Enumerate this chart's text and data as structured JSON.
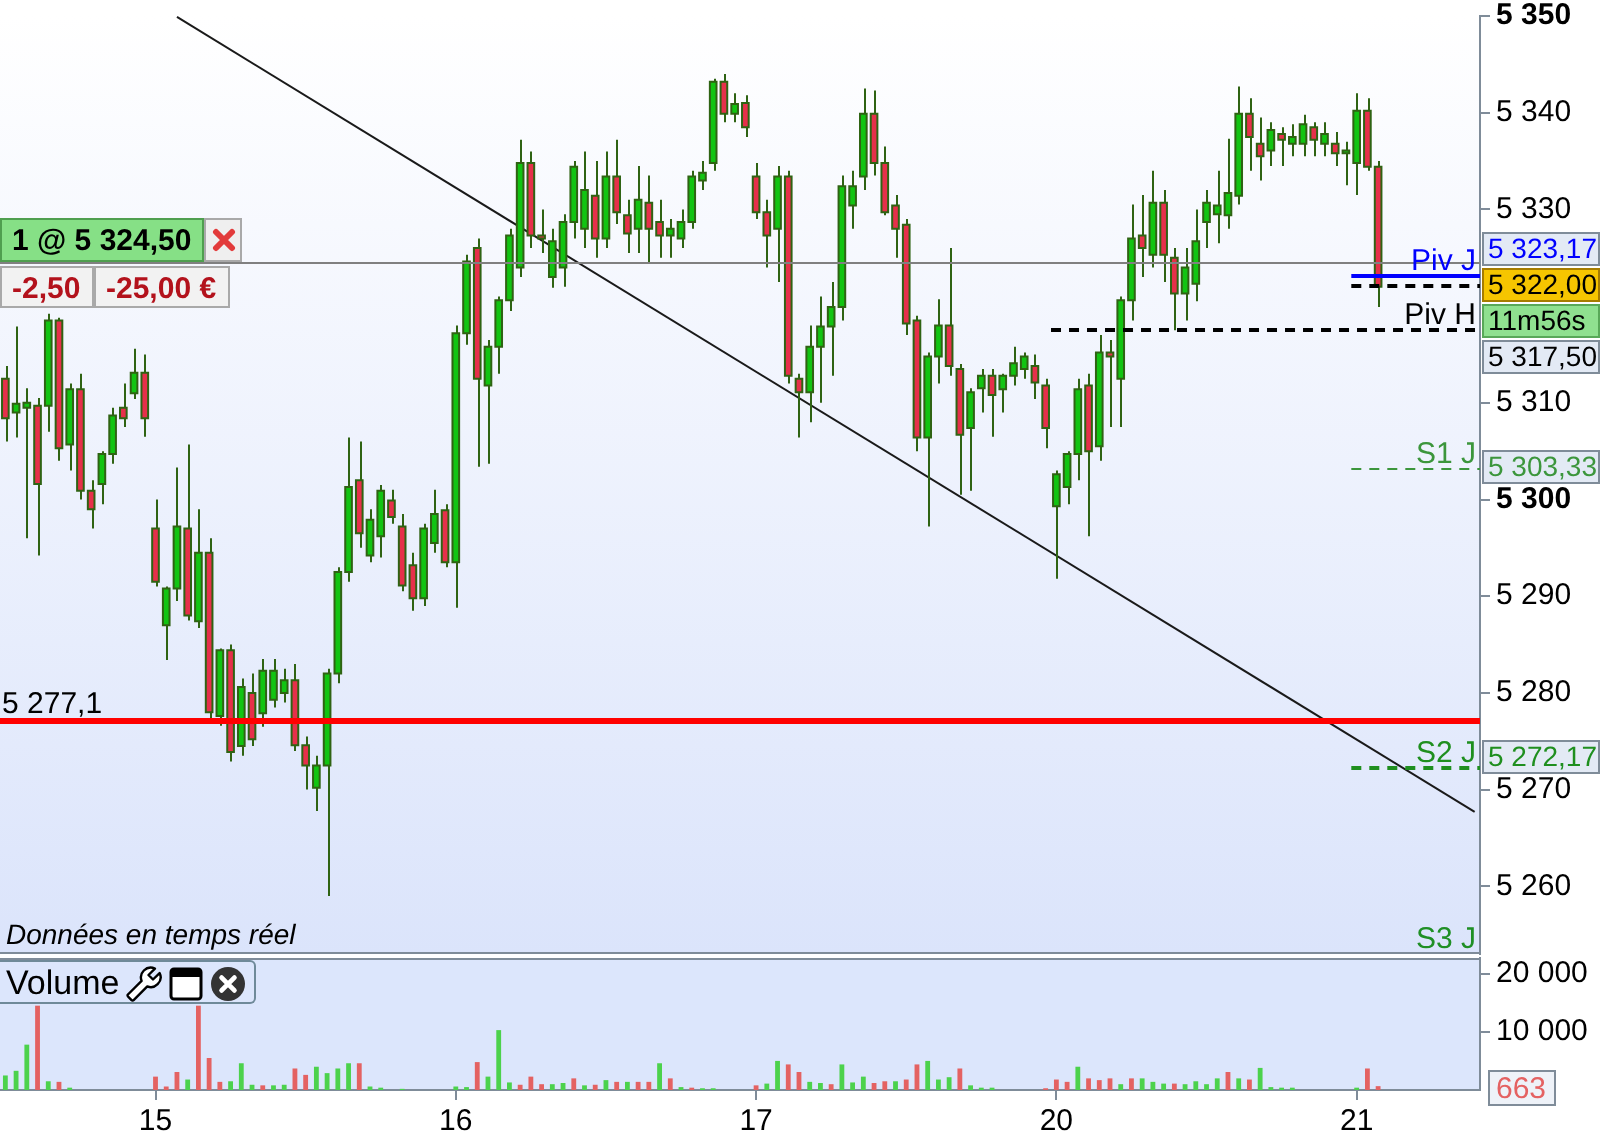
{
  "chart_data": [
    {
      "type": "candlestick",
      "categories": [
        null,
        null,
        null,
        null,
        null,
        null,
        null,
        null,
        null,
        null,
        null,
        null,
        null,
        null,
        "15",
        null,
        null,
        null,
        null,
        null,
        null,
        null,
        null,
        null,
        null,
        null,
        null,
        null,
        null,
        null,
        null,
        null,
        null,
        null,
        null,
        null,
        null,
        null,
        null,
        null,
        null,
        null,
        "16",
        null,
        null,
        null,
        null,
        null,
        null,
        null,
        null,
        null,
        null,
        null,
        null,
        null,
        null,
        null,
        null,
        null,
        null,
        null,
        null,
        null,
        null,
        null,
        null,
        null,
        null,
        null,
        "17",
        null,
        null,
        null,
        null,
        null,
        null,
        null,
        null,
        null,
        null,
        null,
        null,
        null,
        null,
        null,
        null,
        null,
        null,
        null,
        null,
        null,
        null,
        null,
        null,
        null,
        null,
        null,
        "20",
        null,
        null,
        null,
        null,
        null,
        null,
        null,
        null,
        null,
        null,
        null,
        null,
        null,
        null,
        null,
        null,
        null,
        null,
        null,
        null,
        null,
        null,
        null,
        null,
        null,
        null,
        null,
        "21",
        null,
        null,
        null,
        null,
        null,
        null,
        null,
        null,
        null,
        null,
        null
      ],
      "ohlc": [
        [
          5312.5,
          5313.8,
          5306.0,
          5308.4
        ],
        [
          5309.0,
          5317.9,
          5306.4,
          5309.9
        ],
        [
          5309.5,
          5311.5,
          5296.0,
          5310.0
        ],
        [
          5309.7,
          5310.5,
          5294.2,
          5301.6
        ],
        [
          5309.7,
          5319.2,
          5307.0,
          5318.5
        ],
        [
          5318.5,
          5318.8,
          5304.0,
          5305.3
        ],
        [
          5305.7,
          5312.0,
          5303.0,
          5311.4
        ],
        [
          5311.4,
          5313.0,
          5300.0,
          5300.9
        ],
        [
          5300.9,
          5302.0,
          5297.0,
          5299.0
        ],
        [
          5301.6,
          5305.0,
          5299.5,
          5304.7
        ],
        [
          5304.7,
          5309.5,
          5303.7,
          5308.7
        ],
        [
          5309.5,
          5312.0,
          5307.5,
          5308.4
        ],
        [
          5311.0,
          5315.6,
          5310.4,
          5313.1
        ],
        [
          5313.1,
          5315.0,
          5306.5,
          5308.4
        ],
        [
          5297.0,
          5300.0,
          5291.0,
          5291.5
        ],
        [
          5287.0,
          5291.0,
          5283.4,
          5290.8
        ],
        [
          5290.8,
          5303.3,
          5289.5,
          5297.2
        ],
        [
          5297.0,
          5305.7,
          5287.5,
          5288.0
        ],
        [
          5287.4,
          5299.0,
          5286.7,
          5294.5
        ],
        [
          5294.5,
          5296.0,
          5277.0,
          5278.0
        ],
        [
          5277.6,
          5284.6,
          5276.6,
          5284.4
        ],
        [
          5284.4,
          5285.0,
          5272.9,
          5273.9
        ],
        [
          5274.5,
          5281.5,
          5273.5,
          5280.6
        ],
        [
          5280.0,
          5282.0,
          5274.5,
          5275.2
        ],
        [
          5277.9,
          5283.5,
          5276.5,
          5282.3
        ],
        [
          5279.3,
          5283.5,
          5278.5,
          5282.3
        ],
        [
          5280.0,
          5282.5,
          5279.0,
          5281.3
        ],
        [
          5281.3,
          5283.0,
          5274.0,
          5274.6
        ],
        [
          5274.6,
          5275.5,
          5270.0,
          5272.5
        ],
        [
          5270.2,
          5273.5,
          5267.8,
          5272.5
        ],
        [
          5272.5,
          5282.5,
          5259.0,
          5282.0
        ],
        [
          5282.0,
          5293.0,
          5281.0,
          5292.5
        ],
        [
          5292.5,
          5306.4,
          5291.5,
          5301.3
        ],
        [
          5302.0,
          5306.0,
          5295.0,
          5296.5
        ],
        [
          5294.2,
          5299.0,
          5293.5,
          5297.9
        ],
        [
          5296.2,
          5301.5,
          5294.0,
          5300.9
        ],
        [
          5299.9,
          5301.0,
          5297.5,
          5298.2
        ],
        [
          5297.2,
          5298.5,
          5290.5,
          5291.1
        ],
        [
          5293.2,
          5294.5,
          5288.5,
          5289.8
        ],
        [
          5289.8,
          5297.5,
          5289.0,
          5297.0
        ],
        [
          5295.5,
          5301.0,
          5294.5,
          5298.5
        ],
        [
          5298.9,
          5299.5,
          5293.0,
          5293.5
        ],
        [
          5293.5,
          5318.0,
          5288.8,
          5317.2
        ],
        [
          5317.2,
          5325.3,
          5316.0,
          5324.6
        ],
        [
          5326.0,
          5327.0,
          5303.4,
          5312.5
        ],
        [
          5311.8,
          5316.5,
          5303.7,
          5315.8
        ],
        [
          5315.8,
          5321.0,
          5313.0,
          5320.6
        ],
        [
          5320.6,
          5328.0,
          5319.5,
          5327.3
        ],
        [
          5324.0,
          5337.2,
          5323.0,
          5334.8
        ],
        [
          5334.8,
          5336.0,
          5326.0,
          5327.3
        ],
        [
          5327.3,
          5330.0,
          5325.5,
          5327.0
        ],
        [
          5323.0,
          5328.0,
          5321.9,
          5326.7
        ],
        [
          5324.0,
          5329.5,
          5322.0,
          5328.7
        ],
        [
          5328.7,
          5335.0,
          5327.0,
          5334.4
        ],
        [
          5328.0,
          5336.0,
          5326.0,
          5332.0
        ],
        [
          5331.4,
          5335.0,
          5325.0,
          5327.0
        ],
        [
          5327.0,
          5336.0,
          5326.0,
          5333.4
        ],
        [
          5333.4,
          5337.2,
          5328.5,
          5329.7
        ],
        [
          5329.4,
          5331.0,
          5325.5,
          5327.5
        ],
        [
          5328.0,
          5334.5,
          5325.5,
          5331.0
        ],
        [
          5330.7,
          5333.5,
          5324.5,
          5328.0
        ],
        [
          5328.7,
          5331.0,
          5325.0,
          5327.3
        ],
        [
          5327.3,
          5329.0,
          5325.0,
          5328.0
        ],
        [
          5327.0,
          5330.0,
          5326.0,
          5328.7
        ],
        [
          5328.7,
          5334.0,
          5328.0,
          5333.4
        ],
        [
          5333.0,
          5335.0,
          5332.0,
          5333.8
        ],
        [
          5334.8,
          5343.5,
          5334.0,
          5343.2
        ],
        [
          5343.2,
          5344.0,
          5339.0,
          5339.9
        ],
        [
          5339.9,
          5342.0,
          5339.0,
          5340.9
        ],
        [
          5341.0,
          5341.8,
          5337.5,
          5338.5
        ],
        [
          5333.4,
          5334.8,
          5329.0,
          5329.7
        ],
        [
          5329.7,
          5331.0,
          5324.0,
          5327.3
        ],
        [
          5328.0,
          5334.5,
          5322.5,
          5333.4
        ],
        [
          5333.4,
          5334.0,
          5312.0,
          5312.8
        ],
        [
          5312.5,
          5313.0,
          5306.4,
          5311.1
        ],
        [
          5311.1,
          5318.0,
          5308.0,
          5315.8
        ],
        [
          5315.8,
          5321.0,
          5310.0,
          5317.9
        ],
        [
          5317.9,
          5322.5,
          5312.8,
          5319.9
        ],
        [
          5319.9,
          5333.5,
          5318.5,
          5332.4
        ],
        [
          5330.4,
          5334.0,
          5328.0,
          5332.4
        ],
        [
          5333.4,
          5342.5,
          5332.0,
          5339.9
        ],
        [
          5339.9,
          5342.3,
          5333.5,
          5334.8
        ],
        [
          5334.8,
          5336.5,
          5329.4,
          5329.7
        ],
        [
          5330.4,
          5331.5,
          5325.0,
          5328.0
        ],
        [
          5328.4,
          5329.0,
          5317.0,
          5318.2
        ],
        [
          5318.5,
          5319.0,
          5305.0,
          5306.4
        ],
        [
          5306.4,
          5315.2,
          5297.2,
          5314.8
        ],
        [
          5314.8,
          5320.7,
          5312.0,
          5318.0
        ],
        [
          5318.0,
          5326.0,
          5312.8,
          5313.8
        ],
        [
          5313.5,
          5314.0,
          5300.5,
          5306.7
        ],
        [
          5307.4,
          5311.5,
          5300.9,
          5311.1
        ],
        [
          5311.5,
          5313.5,
          5309.0,
          5312.8
        ],
        [
          5312.8,
          5313.5,
          5306.5,
          5310.8
        ],
        [
          5311.4,
          5313.0,
          5309.0,
          5312.8
        ],
        [
          5312.8,
          5315.8,
          5311.8,
          5314.1
        ],
        [
          5313.5,
          5315.2,
          5312.5,
          5314.8
        ],
        [
          5313.8,
          5315.0,
          5310.4,
          5312.1
        ],
        [
          5311.8,
          5312.5,
          5305.3,
          5307.4
        ],
        [
          5299.3,
          5303.0,
          5291.8,
          5302.6
        ],
        [
          5301.3,
          5305.0,
          5299.5,
          5304.7
        ],
        [
          5304.7,
          5312.5,
          5302.0,
          5311.4
        ],
        [
          5311.8,
          5313.0,
          5296.2,
          5305.0
        ],
        [
          5305.5,
          5317.0,
          5304.0,
          5315.2
        ],
        [
          5315.2,
          5316.5,
          5307.5,
          5314.8
        ],
        [
          5312.5,
          5321.0,
          5307.5,
          5320.6
        ],
        [
          5320.6,
          5330.5,
          5318.5,
          5327.0
        ],
        [
          5327.3,
          5331.5,
          5323.0,
          5326.0
        ],
        [
          5325.3,
          5334.0,
          5324.0,
          5330.7
        ],
        [
          5330.7,
          5332.0,
          5322.5,
          5325.3
        ],
        [
          5325.0,
          5326.0,
          5317.5,
          5321.3
        ],
        [
          5321.3,
          5326.0,
          5318.5,
          5324.0
        ],
        [
          5322.3,
          5330.0,
          5320.5,
          5326.7
        ],
        [
          5328.7,
          5332.0,
          5326.0,
          5330.7
        ],
        [
          5329.5,
          5334.0,
          5326.5,
          5330.4
        ],
        [
          5329.4,
          5337.3,
          5328.0,
          5331.7
        ],
        [
          5331.4,
          5342.7,
          5330.5,
          5339.9
        ],
        [
          5339.9,
          5341.5,
          5334.0,
          5337.5
        ],
        [
          5336.8,
          5339.5,
          5333.0,
          5335.5
        ],
        [
          5336.1,
          5339.0,
          5334.5,
          5338.2
        ],
        [
          5337.8,
          5338.5,
          5334.5,
          5337.2
        ],
        [
          5336.8,
          5338.8,
          5335.5,
          5337.5
        ],
        [
          5336.8,
          5339.8,
          5335.5,
          5338.8
        ],
        [
          5338.5,
          5339.0,
          5335.5,
          5337.2
        ],
        [
          5336.8,
          5339.0,
          5335.5,
          5337.8
        ],
        [
          5336.8,
          5338.0,
          5334.5,
          5335.8
        ],
        [
          5335.8,
          5337.0,
          5332.5,
          5336.1
        ],
        [
          5334.8,
          5342.0,
          5331.5,
          5340.2
        ],
        [
          5340.2,
          5341.5,
          5334.0,
          5334.4
        ],
        [
          5334.4,
          5335.0,
          5319.9,
          5322.0
        ],
        null,
        null,
        null,
        null,
        null,
        null,
        null,
        null,
        null
      ],
      "series": [
        {
          "type": "line",
          "color": "#1a1a1a",
          "values": [
            null,
            null,
            null,
            null,
            null,
            null,
            null,
            null,
            null,
            null,
            null,
            null,
            null,
            null,
            null,
            null,
            5349.9,
            null,
            null,
            null,
            null,
            null,
            null,
            null,
            null,
            null,
            null,
            null,
            null,
            null,
            null,
            null,
            null,
            null,
            null,
            null,
            null,
            null,
            null,
            null,
            null,
            null,
            null,
            null,
            null,
            null,
            null,
            null,
            null,
            null,
            null,
            null,
            null,
            null,
            null,
            null,
            null,
            null,
            null,
            null,
            null,
            null,
            null,
            null,
            null,
            null,
            null,
            null,
            null,
            null,
            null,
            null,
            null,
            null,
            null,
            null,
            null,
            null,
            null,
            null,
            null,
            null,
            null,
            null,
            null,
            null,
            null,
            null,
            null,
            null,
            null,
            null,
            null,
            null,
            null,
            null,
            null,
            null,
            null,
            null,
            null,
            null,
            null,
            null,
            null,
            null,
            null,
            null,
            null,
            null,
            null,
            null,
            null,
            null,
            null,
            null,
            null,
            null,
            null,
            null,
            null,
            null,
            null,
            null,
            null,
            null,
            null,
            null,
            null,
            null,
            null,
            null,
            null,
            null,
            null,
            null,
            null,
            5267.7
          ]
        }
      ],
      "ylim": [
        5253,
        5350
      ],
      "yticks": [
        {
          "value": 5260,
          "label": "5 260"
        },
        {
          "value": 5270,
          "label": "5 270"
        },
        {
          "value": 5280,
          "label": "5 280"
        },
        {
          "value": 5290,
          "label": "5 290"
        },
        {
          "value": 5300,
          "label": "5 300"
        },
        {
          "value": 5310,
          "label": "5 310"
        },
        {
          "value": 5330,
          "label": "5 330"
        },
        {
          "value": 5340,
          "label": "5 340"
        },
        {
          "value": 5350,
          "label": "5 350"
        }
      ],
      "tick_labels": "y",
      "ref_lines": [
        {
          "axis": "y",
          "value": 5277.1,
          "label": "5 277,1",
          "color": "#ff0000",
          "line_style": "solid"
        },
        {
          "axis": "y",
          "value": 5324.5,
          "label": "1 @ 5 324,50",
          "color": "#808080",
          "line_style": "solid"
        },
        {
          "axis": "y",
          "value": 5323.17,
          "label": "Piv J",
          "color": "#0000ff",
          "line_style": "solid"
        },
        {
          "axis": "y",
          "value": 5322.0,
          "label": null,
          "color": "#000000",
          "line_style": "dashed"
        },
        {
          "axis": "y",
          "value": 5317.5,
          "label": "Piv H",
          "color": "#000000",
          "line_style": "dashed"
        },
        {
          "axis": "y",
          "value": 5303.33,
          "label": "S1 J",
          "color": "#3c963c",
          "line_style": "dashed"
        },
        {
          "axis": "y",
          "value": 5272.17,
          "label": "S2 J",
          "color": "#1f8f1f",
          "line_style": "dashed"
        }
      ],
      "annotations": [
        "Données en temps réel",
        "-2,50",
        "-25,00 €",
        "5 323,17",
        "5 322,00",
        "11m56s",
        "5 317,50",
        "5 303,33",
        "5 272,17",
        "S3 J"
      ]
    },
    {
      "type": "bar",
      "title": "Volume",
      "categories": [
        null,
        null,
        null,
        null,
        null,
        null,
        null,
        null,
        null,
        null,
        null,
        null,
        null,
        null,
        "15",
        null,
        null,
        null,
        null,
        null,
        null,
        null,
        null,
        null,
        null,
        null,
        null,
        null,
        null,
        null,
        null,
        null,
        null,
        null,
        null,
        null,
        null,
        null,
        null,
        null,
        null,
        null,
        "16",
        null,
        null,
        null,
        null,
        null,
        null,
        null,
        null,
        null,
        null,
        null,
        null,
        null,
        null,
        null,
        null,
        null,
        null,
        null,
        null,
        null,
        null,
        null,
        null,
        null,
        null,
        null,
        "17",
        null,
        null,
        null,
        null,
        null,
        null,
        null,
        null,
        null,
        null,
        null,
        null,
        null,
        null,
        null,
        null,
        null,
        null,
        null,
        null,
        null,
        null,
        null,
        null,
        null,
        null,
        null,
        "20",
        null,
        null,
        null,
        null,
        null,
        null,
        null,
        null,
        null,
        null,
        null,
        null,
        null,
        null,
        null,
        null,
        null,
        null,
        null,
        null,
        null,
        null,
        null,
        null,
        null,
        null,
        null,
        "21",
        null,
        null,
        null,
        null,
        null,
        null,
        null,
        null,
        null,
        null,
        null
      ],
      "values": [
        2500,
        3300,
        7800,
        14500,
        1500,
        1400,
        400,
        null,
        null,
        null,
        null,
        null,
        null,
        null,
        2300,
        600,
        3100,
        1800,
        14500,
        5500,
        1400,
        1500,
        4600,
        900,
        800,
        800,
        900,
        3700,
        2600,
        4000,
        2900,
        3700,
        4600,
        4600,
        600,
        400,
        null,
        200,
        null,
        null,
        null,
        null,
        600,
        500,
        4800,
        2300,
        10300,
        1300,
        900,
        2300,
        1000,
        1000,
        1200,
        2000,
        800,
        900,
        1700,
        1400,
        1400,
        1400,
        1400,
        4600,
        2000,
        500,
        400,
        300,
        300,
        null,
        null,
        null,
        800,
        1100,
        5000,
        4400,
        3100,
        1400,
        1200,
        1000,
        4400,
        1300,
        2300,
        1200,
        1500,
        1500,
        1800,
        4400,
        5000,
        1800,
        2200,
        3700,
        800,
        400,
        400,
        null,
        null,
        null,
        null,
        300,
        1800,
        1400,
        4000,
        2000,
        1700,
        2000,
        1000,
        2000,
        2000,
        1400,
        1100,
        1100,
        1000,
        1500,
        1000,
        2000,
        3100,
        2000,
        1800,
        3800,
        500,
        400,
        400,
        null,
        null,
        null,
        null,
        null,
        400,
        3700,
        663,
        null,
        null,
        null,
        null,
        null,
        null,
        null,
        null,
        null
      ],
      "colors": [
        "#4cd24c",
        "#4cd24c",
        "#4cd24c",
        "#e46262",
        "#4cd24c",
        "#e46262",
        "#4cd24c",
        null,
        null,
        null,
        null,
        null,
        null,
        null,
        "#e46262",
        "#e46262",
        "#e46262",
        "#4cd24c",
        "#e46262",
        "#e46262",
        "#e46262",
        "#4cd24c",
        "#4cd24c",
        "#4cd24c",
        "#e46262",
        "#4cd24c",
        "#4cd24c",
        "#e46262",
        "#e46262",
        "#4cd24c",
        "#4cd24c",
        "#4cd24c",
        "#4cd24c",
        "#e46262",
        "#4cd24c",
        "#4cd24c",
        null,
        "#4cd24c",
        null,
        null,
        null,
        null,
        "#4cd24c",
        "#4cd24c",
        "#e46262",
        "#4cd24c",
        "#4cd24c",
        "#4cd24c",
        "#e46262",
        "#e46262",
        "#e46262",
        "#4cd24c",
        "#4cd24c",
        "#e46262",
        "#4cd24c",
        "#e46262",
        "#4cd24c",
        "#e46262",
        "#4cd24c",
        "#e46262",
        "#e46262",
        "#4cd24c",
        "#e46262",
        "#4cd24c",
        "#e46262",
        "#4cd24c",
        "#4cd24c",
        null,
        null,
        null,
        "#e46262",
        "#4cd24c",
        "#4cd24c",
        "#e46262",
        "#e46262",
        "#4cd24c",
        "#4cd24c",
        "#e46262",
        "#4cd24c",
        "#4cd24c",
        "#4cd24c",
        "#e46262",
        "#e46262",
        "#4cd24c",
        "#e46262",
        "#e46262",
        "#4cd24c",
        "#4cd24c",
        "#4cd24c",
        "#e46262",
        "#4cd24c",
        "#4cd24c",
        "#4cd24c",
        null,
        null,
        null,
        null,
        "#e46262",
        "#e46262",
        "#e46262",
        "#4cd24c",
        "#e46262",
        "#e46262",
        "#e46262",
        "#4cd24c",
        "#e46262",
        "#4cd24c",
        "#4cd24c",
        "#4cd24c",
        "#e46262",
        "#4cd24c",
        "#4cd24c",
        "#4cd24c",
        "#4cd24c",
        "#e46262",
        "#4cd24c",
        "#e46262",
        "#4cd24c",
        "#4cd24c",
        "#4cd24c",
        "#4cd24c",
        null,
        null,
        null,
        null,
        null,
        "#4cd24c",
        "#e46262",
        "#e46262",
        null,
        null,
        null,
        null,
        null,
        null,
        null,
        null,
        null
      ],
      "ylim": [
        0,
        22700
      ],
      "yticks": [
        {
          "value": 10000,
          "label": "10 000"
        },
        {
          "value": 20000,
          "label": "20 000"
        }
      ],
      "annotations": [
        "663"
      ]
    }
  ]
}
